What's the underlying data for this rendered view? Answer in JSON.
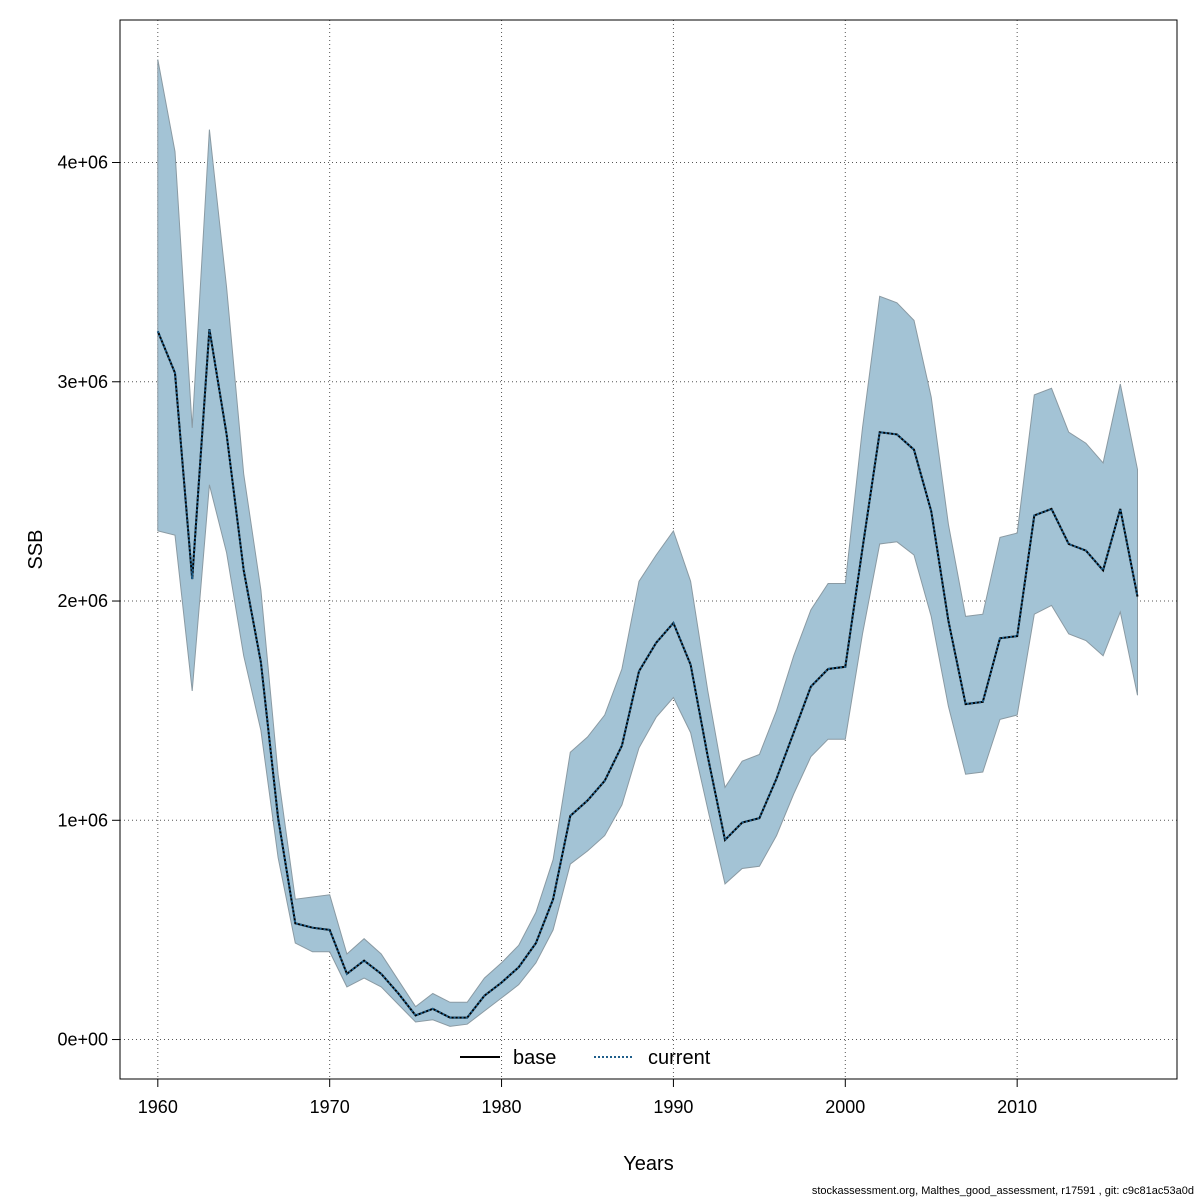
{
  "chart_data": {
    "type": "line",
    "title": "",
    "xlabel": "Years",
    "ylabel": "SSB",
    "xlim": [
      1957.8,
      1918
    ],
    "xticks": [
      1960,
      1970,
      1980,
      1990,
      2000,
      2010
    ],
    "xtick_labels": [
      "1960",
      "1970",
      "1980",
      "1990",
      "2000",
      "2010"
    ],
    "ylim": [
      -180000,
      4650000
    ],
    "yticks": [
      0,
      1000000,
      2000000,
      3000000,
      4000000
    ],
    "ytick_labels": [
      "0e+00",
      "1e+06",
      "2e+06",
      "3e+06",
      "4e+06"
    ],
    "grid": true,
    "legend": {
      "placement": "bottom-center",
      "entries": [
        {
          "label": "base",
          "color": "#000000",
          "style": "solid"
        },
        {
          "label": "current",
          "color": "#1f5f8b",
          "style": "dotted"
        }
      ]
    },
    "band_color": "#a3c3d5",
    "x": [
      1960,
      1961,
      1962,
      1963,
      1964,
      1965,
      1966,
      1967,
      1968,
      1969,
      1970,
      1971,
      1972,
      1973,
      1974,
      1975,
      1976,
      1977,
      1978,
      1979,
      1980,
      1981,
      1982,
      1983,
      1984,
      1985,
      1986,
      1987,
      1988,
      1989,
      1990,
      1991,
      1992,
      1993,
      1994,
      1995,
      1996,
      1997,
      1998,
      1999,
      2000,
      2001,
      2002,
      2003,
      2004,
      2005,
      2006,
      2007,
      2008,
      2009,
      2010,
      2011,
      2012,
      2013,
      2014,
      2015,
      2016,
      2017
    ],
    "series": [
      {
        "name": "base",
        "color": "#000000",
        "style": "solid",
        "values": [
          3230000,
          3040000,
          2100000,
          3240000,
          2760000,
          2140000,
          1720000,
          1010000,
          530000,
          510000,
          500000,
          300000,
          360000,
          300000,
          210000,
          110000,
          140000,
          100000,
          100000,
          200000,
          260000,
          330000,
          440000,
          640000,
          1020000,
          1090000,
          1180000,
          1340000,
          1680000,
          1810000,
          1900000,
          1710000,
          1290000,
          910000,
          990000,
          1010000,
          1190000,
          1400000,
          1610000,
          1690000,
          1700000,
          2240000,
          2770000,
          2760000,
          2690000,
          2410000,
          1910000,
          1530000,
          1540000,
          1830000,
          1840000,
          2390000,
          2420000,
          2260000,
          2230000,
          2140000,
          2420000,
          2020000
        ]
      },
      {
        "name": "current",
        "color": "#1f5f8b",
        "style": "dotted",
        "values": [
          3230000,
          3040000,
          2100000,
          3240000,
          2760000,
          2140000,
          1720000,
          1010000,
          530000,
          510000,
          500000,
          300000,
          360000,
          300000,
          210000,
          110000,
          140000,
          100000,
          100000,
          200000,
          260000,
          330000,
          440000,
          640000,
          1020000,
          1090000,
          1180000,
          1340000,
          1680000,
          1810000,
          1900000,
          1710000,
          1290000,
          910000,
          990000,
          1010000,
          1190000,
          1400000,
          1610000,
          1690000,
          1700000,
          2240000,
          2770000,
          2760000,
          2690000,
          2410000,
          1910000,
          1530000,
          1540000,
          1830000,
          1840000,
          2390000,
          2420000,
          2260000,
          2230000,
          2140000,
          2420000,
          2020000
        ]
      }
    ],
    "upper": [
      4470000,
      4050000,
      2790000,
      4150000,
      3430000,
      2580000,
      2050000,
      1210000,
      640000,
      650000,
      660000,
      390000,
      460000,
      390000,
      270000,
      150000,
      210000,
      170000,
      170000,
      280000,
      350000,
      430000,
      580000,
      820000,
      1310000,
      1380000,
      1480000,
      1690000,
      2090000,
      2210000,
      2320000,
      2090000,
      1590000,
      1150000,
      1270000,
      1300000,
      1500000,
      1750000,
      1960000,
      2080000,
      2080000,
      2790000,
      3390000,
      3360000,
      3280000,
      2930000,
      2350000,
      1930000,
      1940000,
      2290000,
      2310000,
      2940000,
      2970000,
      2770000,
      2720000,
      2630000,
      2990000,
      2600000
    ],
    "lower": [
      2320000,
      2300000,
      1590000,
      2530000,
      2220000,
      1750000,
      1410000,
      830000,
      440000,
      400000,
      400000,
      240000,
      280000,
      240000,
      160000,
      80000,
      90000,
      60000,
      70000,
      130000,
      190000,
      250000,
      350000,
      500000,
      800000,
      860000,
      930000,
      1070000,
      1330000,
      1470000,
      1560000,
      1400000,
      1050000,
      710000,
      780000,
      790000,
      930000,
      1120000,
      1290000,
      1370000,
      1370000,
      1850000,
      2260000,
      2270000,
      2210000,
      1930000,
      1520000,
      1210000,
      1220000,
      1460000,
      1480000,
      1940000,
      1980000,
      1850000,
      1820000,
      1750000,
      1950000,
      1570000
    ]
  },
  "footer": {
    "text": "stockassessment.org, Malthes_good_assessment, r17591 , git: c9c81ac53a0d"
  }
}
